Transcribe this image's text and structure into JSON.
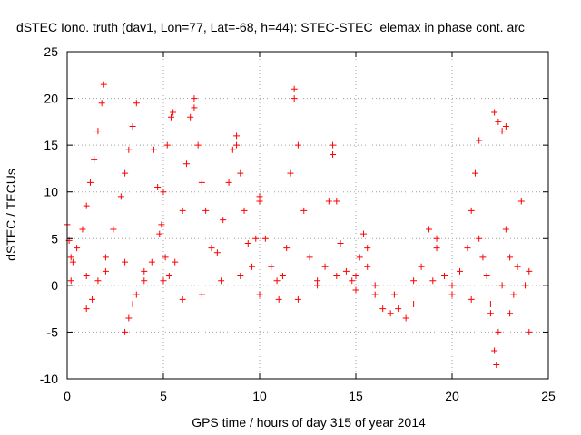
{
  "chart_data": {
    "type": "scatter",
    "title": "dSTEC Iono. truth (dav1, Lon=77, Lat=-68, h=44): STEC-STEC_elemax in phase cont. arc",
    "xlabel": "GPS time / hours of day 315 of year 2014",
    "ylabel": "dSTEC  / TECUs",
    "xlim": [
      0,
      25
    ],
    "ylim": [
      -10,
      25
    ],
    "x_ticks": [
      0,
      5,
      10,
      15,
      20,
      25
    ],
    "y_ticks": [
      -10,
      -5,
      0,
      5,
      10,
      15,
      20,
      25
    ],
    "x_tick_labels": [
      "0",
      "5",
      "10",
      "15",
      "20",
      "25"
    ],
    "y_tick_labels": [
      "-10",
      "-5",
      "0",
      "5",
      "10",
      "15",
      "20",
      "25"
    ],
    "grid": true,
    "marker": "plus",
    "series": [
      {
        "color": "#ff0000",
        "x": [
          0.0,
          0.1,
          0.2,
          0.3,
          0.5,
          0.8,
          1.0,
          1.2,
          1.4,
          1.6,
          1.8,
          1.9
        ],
        "y": [
          6.5,
          4.8,
          3.0,
          2.5,
          4.0,
          6.0,
          8.5,
          11.0,
          13.5,
          16.5,
          19.5,
          21.5
        ]
      },
      {
        "color": "#ff0000",
        "x": [
          1.0,
          1.3,
          1.6,
          2.0,
          2.4,
          2.8,
          3.0,
          3.2,
          3.4,
          3.6
        ],
        "y": [
          -2.5,
          -1.5,
          0.5,
          3.0,
          6.0,
          9.5,
          12.0,
          14.5,
          17.0,
          19.5
        ]
      },
      {
        "color": "#ff0000",
        "x": [
          3.0,
          3.2,
          3.4,
          3.6,
          4.0,
          4.4,
          4.8,
          5.0,
          5.2,
          5.4,
          5.5
        ],
        "y": [
          -5.0,
          -3.5,
          -2.0,
          -1.0,
          0.5,
          2.5,
          5.5,
          10.0,
          15.0,
          18.0,
          18.5
        ]
      },
      {
        "color": "#ff0000",
        "x": [
          4.5,
          4.7,
          4.9,
          5.1,
          5.3,
          5.6,
          6.0,
          6.2,
          6.4,
          6.6
        ],
        "y": [
          14.5,
          10.5,
          6.5,
          3.0,
          1.0,
          2.5,
          8.0,
          13.0,
          18.0,
          20.0
        ]
      },
      {
        "color": "#ff0000",
        "x": [
          6.6,
          6.8,
          7.0,
          7.2,
          7.5,
          7.8,
          8.1,
          8.4,
          8.6,
          8.8
        ],
        "y": [
          19.0,
          15.0,
          11.0,
          8.0,
          4.0,
          3.5,
          7.0,
          11.0,
          14.5,
          16.0
        ]
      },
      {
        "color": "#ff0000",
        "x": [
          8.8,
          9.0,
          9.2,
          9.4,
          9.6,
          9.8,
          10.0
        ],
        "y": [
          15.0,
          12.0,
          8.0,
          4.5,
          2.0,
          5.0,
          9.5
        ]
      },
      {
        "color": "#ff0000",
        "x": [
          10.0,
          10.3,
          10.6,
          10.9,
          11.2,
          11.4,
          11.6,
          11.8
        ],
        "y": [
          9.0,
          5.0,
          2.0,
          0.5,
          1.0,
          4.0,
          12.0,
          21.0
        ]
      },
      {
        "color": "#ff0000",
        "x": [
          11.8,
          12.0,
          12.3,
          12.6,
          13.0,
          13.4,
          13.6,
          13.8
        ],
        "y": [
          20.0,
          15.0,
          8.0,
          3.0,
          0.0,
          2.0,
          9.0,
          15.0
        ]
      },
      {
        "color": "#ff0000",
        "x": [
          13.8,
          14.0,
          14.2,
          14.5,
          14.8,
          15.0,
          15.2,
          15.4,
          15.6
        ],
        "y": [
          14.0,
          9.0,
          4.5,
          1.5,
          0.5,
          1.0,
          3.0,
          5.5,
          4.0
        ]
      },
      {
        "color": "#ff0000",
        "x": [
          15.6,
          16.0,
          16.4,
          16.8,
          17.2,
          17.6,
          18.0,
          18.4,
          18.8,
          19.2
        ],
        "y": [
          2.0,
          -1.0,
          -2.5,
          -3.0,
          -2.5,
          -3.5,
          -2.0,
          2.0,
          6.0,
          5.0
        ]
      },
      {
        "color": "#ff0000",
        "x": [
          19.2,
          19.6,
          20.0,
          20.4,
          20.8,
          21.0,
          21.2,
          21.4
        ],
        "y": [
          4.0,
          1.0,
          0.0,
          1.5,
          4.0,
          8.0,
          12.0,
          15.5
        ]
      },
      {
        "color": "#ff0000",
        "x": [
          21.4,
          21.6,
          21.8,
          22.0,
          22.2,
          22.3,
          22.4,
          22.6,
          22.8
        ],
        "y": [
          5.0,
          3.0,
          1.0,
          -3.0,
          -7.0,
          -8.5,
          -5.0,
          0.0,
          17.0
        ]
      },
      {
        "color": "#ff0000",
        "x": [
          22.2,
          22.4,
          22.6,
          22.8,
          23.0,
          23.2,
          23.4,
          23.6,
          23.8,
          24.0
        ],
        "y": [
          18.5,
          17.5,
          16.5,
          6.0,
          3.0,
          -1.0,
          2.0,
          9.0,
          0.0,
          -5.0
        ]
      },
      {
        "color": "#ff0000",
        "x": [
          0.2,
          1.0,
          2.0,
          3.0,
          4.0,
          5.0,
          6.0,
          7.0,
          8.0,
          9.0,
          10.0,
          11.0,
          12.0,
          13.0,
          14.0,
          15.0,
          16.0,
          17.0,
          18.0,
          19.0,
          20.0,
          21.0,
          22.0,
          23.0,
          24.0
        ],
        "y": [
          0.5,
          1.0,
          1.5,
          2.5,
          1.5,
          0.5,
          -1.5,
          -1.0,
          0.5,
          1.0,
          -1.0,
          -1.5,
          -1.5,
          0.5,
          1.0,
          -0.5,
          0.0,
          -1.0,
          0.5,
          0.5,
          -1.0,
          -1.5,
          -2.0,
          -3.0,
          1.5
        ]
      }
    ]
  }
}
